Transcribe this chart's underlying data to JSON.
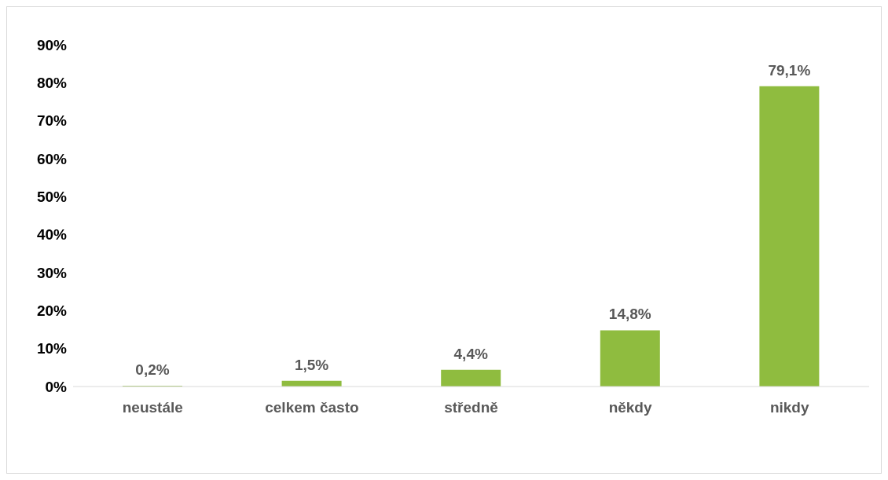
{
  "chart_data": {
    "type": "bar",
    "categories": [
      "neustále",
      "celkem často",
      "středně",
      "někdy",
      "nikdy"
    ],
    "values": [
      0.2,
      1.5,
      4.4,
      14.8,
      79.1
    ],
    "value_labels": [
      "0,2%",
      "1,5%",
      "4,4%",
      "14,8%",
      "79,1%"
    ],
    "color": "#8fbc3f",
    "ylim": [
      0,
      90
    ],
    "yticks": [
      {
        "value": 0,
        "label": "0%"
      },
      {
        "value": 10,
        "label": "10%"
      },
      {
        "value": 20,
        "label": "20%"
      },
      {
        "value": 30,
        "label": "30%"
      },
      {
        "value": 40,
        "label": "40%"
      },
      {
        "value": 50,
        "label": "50%"
      },
      {
        "value": 60,
        "label": "60%"
      },
      {
        "value": 70,
        "label": "70%"
      },
      {
        "value": 80,
        "label": "80%"
      },
      {
        "value": 90,
        "label": "90%"
      }
    ],
    "grid": false,
    "legend": false
  }
}
